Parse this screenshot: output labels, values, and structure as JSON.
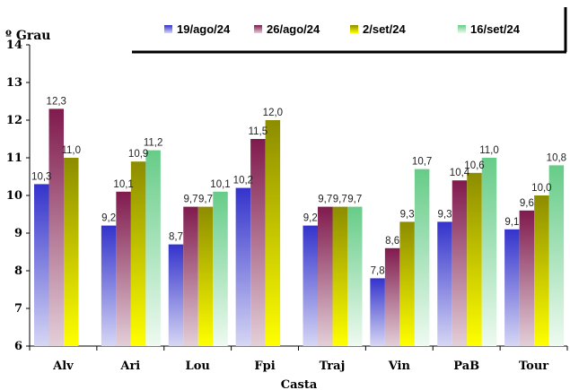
{
  "chart_data": {
    "type": "bar",
    "title": "",
    "ylabel": "º Grau",
    "xlabel": "Casta",
    "ylim": [
      6,
      14
    ],
    "yticks": [
      6,
      7,
      8,
      9,
      10,
      11,
      12,
      13,
      14
    ],
    "categories": [
      "Alv",
      "Ari",
      "Lou",
      "Fpi",
      "Traj",
      "Vin",
      "PaB",
      "Tour"
    ],
    "legend_position": "top-right",
    "grid": false,
    "series": [
      {
        "name": "19/ago/24",
        "color_dark": "#3333cc",
        "color_light": "#d6d6f5",
        "values": [
          10.3,
          9.2,
          8.7,
          10.2,
          9.2,
          7.8,
          9.3,
          9.1
        ],
        "labels": [
          "10,3",
          "9,2",
          "8,7",
          "10,2",
          "9,2",
          "7,8",
          "9,3",
          "9,1"
        ]
      },
      {
        "name": "26/ago/24",
        "color_dark": "#801a4d",
        "color_light": "#e3cfd8",
        "values": [
          12.3,
          10.1,
          9.7,
          11.5,
          9.7,
          8.6,
          10.4,
          9.6
        ],
        "labels": [
          "12,3",
          "10,1",
          "9,7",
          "11,5",
          "9,7",
          "8,6",
          "10,4",
          "9,6"
        ]
      },
      {
        "name": "2/set/24",
        "color_dark": "#8c8c00",
        "color_light": "#ffff00",
        "values": [
          11.0,
          10.9,
          9.7,
          12.0,
          9.7,
          9.3,
          10.6,
          10.0
        ],
        "labels": [
          "11,0",
          "10,9",
          "9,7",
          "12,0",
          "9,7",
          "9,3",
          "10,6",
          "10,0"
        ]
      },
      {
        "name": "16/set/24",
        "color_dark": "#66cc88",
        "color_light": "#eefaf0",
        "values": [
          null,
          11.2,
          10.1,
          null,
          9.7,
          10.7,
          11.0,
          10.8
        ],
        "labels": [
          "",
          "11,2",
          "10,1",
          "",
          "9,7",
          "10,7",
          "11,0",
          "10,8"
        ]
      }
    ]
  }
}
